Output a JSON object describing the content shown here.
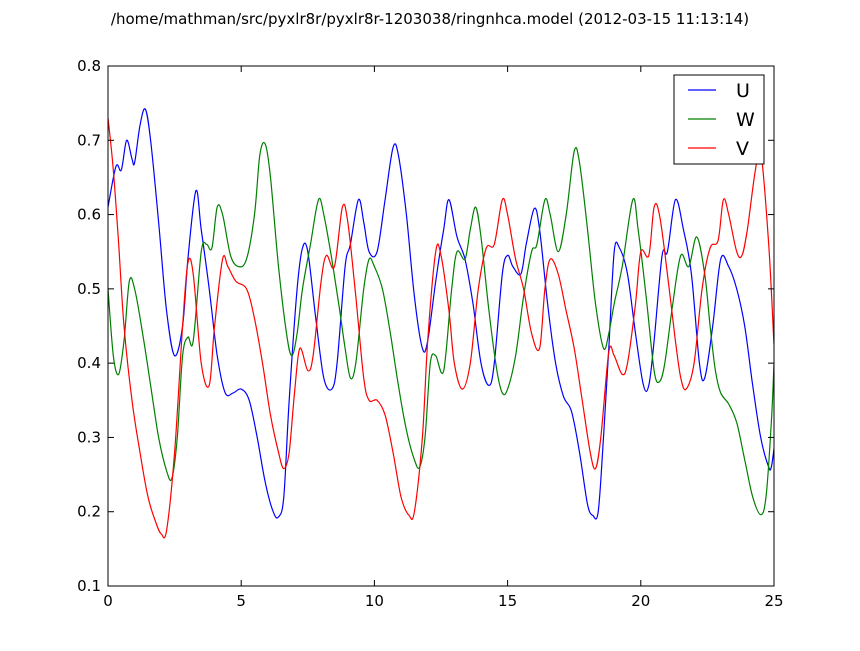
{
  "chart_data": {
    "type": "line",
    "title": "/home/mathman/src/pyxlr8r/pyxlr8r-1203038/ringnhca.model (2012-03-15 11:13:14)",
    "xlabel": "",
    "ylabel": "",
    "xlim": [
      0,
      25
    ],
    "ylim": [
      0.1,
      0.8
    ],
    "xticks": [
      0,
      5,
      10,
      15,
      20,
      25
    ],
    "yticks": [
      0.1,
      0.2,
      0.3,
      0.4,
      0.5,
      0.6,
      0.7,
      0.8
    ],
    "xtick_labels": [
      "0",
      "5",
      "10",
      "15",
      "20",
      "25"
    ],
    "ytick_labels": [
      "0.1",
      "0.2",
      "0.3",
      "0.4",
      "0.5",
      "0.6",
      "0.7",
      "0.8"
    ],
    "grid": false,
    "legend_position": "top-right",
    "series": [
      {
        "name": "U",
        "color": "#0000ff",
        "points": [
          [
            0,
            0.61
          ],
          [
            0.3,
            0.665
          ],
          [
            0.5,
            0.66
          ],
          [
            0.7,
            0.7
          ],
          [
            0.9,
            0.675
          ],
          [
            1.0,
            0.67
          ],
          [
            1.2,
            0.72
          ],
          [
            1.4,
            0.742
          ],
          [
            1.6,
            0.7
          ],
          [
            1.9,
            0.59
          ],
          [
            2.2,
            0.47
          ],
          [
            2.5,
            0.41
          ],
          [
            2.8,
            0.45
          ],
          [
            3.0,
            0.54
          ],
          [
            3.3,
            0.632
          ],
          [
            3.5,
            0.58
          ],
          [
            3.8,
            0.5
          ],
          [
            4.1,
            0.41
          ],
          [
            4.4,
            0.36
          ],
          [
            4.7,
            0.36
          ],
          [
            5.0,
            0.365
          ],
          [
            5.3,
            0.35
          ],
          [
            5.6,
            0.3
          ],
          [
            5.9,
            0.24
          ],
          [
            6.2,
            0.2
          ],
          [
            6.4,
            0.193
          ],
          [
            6.6,
            0.22
          ],
          [
            6.8,
            0.35
          ],
          [
            7.1,
            0.5
          ],
          [
            7.3,
            0.555
          ],
          [
            7.5,
            0.55
          ],
          [
            7.8,
            0.46
          ],
          [
            8.1,
            0.38
          ],
          [
            8.4,
            0.365
          ],
          [
            8.6,
            0.4
          ],
          [
            8.9,
            0.53
          ],
          [
            9.1,
            0.56
          ],
          [
            9.4,
            0.62
          ],
          [
            9.6,
            0.59
          ],
          [
            9.8,
            0.55
          ],
          [
            10.1,
            0.55
          ],
          [
            10.4,
            0.62
          ],
          [
            10.7,
            0.69
          ],
          [
            10.9,
            0.68
          ],
          [
            11.2,
            0.6
          ],
          [
            11.5,
            0.49
          ],
          [
            11.8,
            0.42
          ],
          [
            12.0,
            0.43
          ],
          [
            12.3,
            0.51
          ],
          [
            12.6,
            0.58
          ],
          [
            12.8,
            0.62
          ],
          [
            13.1,
            0.57
          ],
          [
            13.4,
            0.54
          ],
          [
            13.7,
            0.48
          ],
          [
            14.0,
            0.4
          ],
          [
            14.3,
            0.37
          ],
          [
            14.5,
            0.4
          ],
          [
            14.8,
            0.52
          ],
          [
            15.0,
            0.545
          ],
          [
            15.2,
            0.53
          ],
          [
            15.5,
            0.52
          ],
          [
            15.7,
            0.56
          ],
          [
            16.0,
            0.608
          ],
          [
            16.2,
            0.58
          ],
          [
            16.5,
            0.48
          ],
          [
            16.8,
            0.4
          ],
          [
            17.1,
            0.355
          ],
          [
            17.4,
            0.335
          ],
          [
            17.7,
            0.28
          ],
          [
            18.0,
            0.21
          ],
          [
            18.2,
            0.195
          ],
          [
            18.4,
            0.2
          ],
          [
            18.6,
            0.3
          ],
          [
            18.8,
            0.42
          ],
          [
            19.0,
            0.55
          ],
          [
            19.2,
            0.555
          ],
          [
            19.5,
            0.52
          ],
          [
            19.8,
            0.44
          ],
          [
            20.1,
            0.37
          ],
          [
            20.3,
            0.37
          ],
          [
            20.5,
            0.43
          ],
          [
            20.8,
            0.545
          ],
          [
            21.0,
            0.55
          ],
          [
            21.3,
            0.62
          ],
          [
            21.6,
            0.58
          ],
          [
            21.9,
            0.52
          ],
          [
            22.2,
            0.4
          ],
          [
            22.4,
            0.38
          ],
          [
            22.7,
            0.45
          ],
          [
            23.0,
            0.54
          ],
          [
            23.3,
            0.53
          ],
          [
            23.6,
            0.5
          ],
          [
            23.9,
            0.45
          ],
          [
            24.2,
            0.37
          ],
          [
            24.5,
            0.3
          ],
          [
            24.8,
            0.26
          ],
          [
            24.9,
            0.26
          ],
          [
            25.0,
            0.285
          ]
        ]
      },
      {
        "name": "W",
        "color": "#008000",
        "points": [
          [
            0,
            0.5
          ],
          [
            0.2,
            0.41
          ],
          [
            0.4,
            0.385
          ],
          [
            0.6,
            0.43
          ],
          [
            0.8,
            0.51
          ],
          [
            1.0,
            0.5
          ],
          [
            1.3,
            0.44
          ],
          [
            1.6,
            0.37
          ],
          [
            1.9,
            0.3
          ],
          [
            2.2,
            0.255
          ],
          [
            2.4,
            0.245
          ],
          [
            2.6,
            0.3
          ],
          [
            2.8,
            0.41
          ],
          [
            3.0,
            0.435
          ],
          [
            3.2,
            0.43
          ],
          [
            3.5,
            0.55
          ],
          [
            3.7,
            0.56
          ],
          [
            3.9,
            0.555
          ],
          [
            4.1,
            0.61
          ],
          [
            4.3,
            0.6
          ],
          [
            4.6,
            0.545
          ],
          [
            4.9,
            0.53
          ],
          [
            5.2,
            0.54
          ],
          [
            5.5,
            0.6
          ],
          [
            5.7,
            0.68
          ],
          [
            5.9,
            0.695
          ],
          [
            6.1,
            0.65
          ],
          [
            6.4,
            0.53
          ],
          [
            6.7,
            0.44
          ],
          [
            6.9,
            0.41
          ],
          [
            7.1,
            0.44
          ],
          [
            7.3,
            0.5
          ],
          [
            7.6,
            0.56
          ],
          [
            7.9,
            0.62
          ],
          [
            8.1,
            0.6
          ],
          [
            8.4,
            0.54
          ],
          [
            8.7,
            0.47
          ],
          [
            8.9,
            0.42
          ],
          [
            9.1,
            0.38
          ],
          [
            9.3,
            0.4
          ],
          [
            9.6,
            0.5
          ],
          [
            9.8,
            0.54
          ],
          [
            10.0,
            0.53
          ],
          [
            10.3,
            0.5
          ],
          [
            10.6,
            0.44
          ],
          [
            10.9,
            0.37
          ],
          [
            11.2,
            0.31
          ],
          [
            11.5,
            0.27
          ],
          [
            11.7,
            0.26
          ],
          [
            11.9,
            0.3
          ],
          [
            12.1,
            0.4
          ],
          [
            12.3,
            0.41
          ],
          [
            12.6,
            0.39
          ],
          [
            12.9,
            0.5
          ],
          [
            13.1,
            0.55
          ],
          [
            13.4,
            0.54
          ],
          [
            13.6,
            0.58
          ],
          [
            13.8,
            0.61
          ],
          [
            14.0,
            0.57
          ],
          [
            14.3,
            0.47
          ],
          [
            14.6,
            0.39
          ],
          [
            14.8,
            0.36
          ],
          [
            15.0,
            0.365
          ],
          [
            15.3,
            0.41
          ],
          [
            15.6,
            0.49
          ],
          [
            15.9,
            0.55
          ],
          [
            16.1,
            0.56
          ],
          [
            16.4,
            0.62
          ],
          [
            16.6,
            0.6
          ],
          [
            16.9,
            0.55
          ],
          [
            17.2,
            0.6
          ],
          [
            17.5,
            0.685
          ],
          [
            17.7,
            0.67
          ],
          [
            18.0,
            0.58
          ],
          [
            18.3,
            0.48
          ],
          [
            18.6,
            0.42
          ],
          [
            18.8,
            0.44
          ],
          [
            19.0,
            0.48
          ],
          [
            19.3,
            0.53
          ],
          [
            19.7,
            0.62
          ],
          [
            19.9,
            0.58
          ],
          [
            20.2,
            0.49
          ],
          [
            20.5,
            0.39
          ],
          [
            20.7,
            0.375
          ],
          [
            20.9,
            0.4
          ],
          [
            21.2,
            0.48
          ],
          [
            21.5,
            0.545
          ],
          [
            21.8,
            0.53
          ],
          [
            22.1,
            0.57
          ],
          [
            22.4,
            0.52
          ],
          [
            22.6,
            0.45
          ],
          [
            22.8,
            0.39
          ],
          [
            23.0,
            0.36
          ],
          [
            23.3,
            0.345
          ],
          [
            23.6,
            0.32
          ],
          [
            23.9,
            0.27
          ],
          [
            24.2,
            0.22
          ],
          [
            24.5,
            0.196
          ],
          [
            24.7,
            0.22
          ],
          [
            24.9,
            0.32
          ],
          [
            25.0,
            0.4
          ]
        ]
      },
      {
        "name": "V",
        "color": "#ff0000",
        "points": [
          [
            0,
            0.73
          ],
          [
            0.2,
            0.66
          ],
          [
            0.4,
            0.56
          ],
          [
            0.6,
            0.45
          ],
          [
            0.9,
            0.35
          ],
          [
            1.2,
            0.28
          ],
          [
            1.5,
            0.22
          ],
          [
            1.8,
            0.185
          ],
          [
            2.0,
            0.17
          ],
          [
            2.2,
            0.175
          ],
          [
            2.5,
            0.28
          ],
          [
            2.8,
            0.45
          ],
          [
            3.0,
            0.535
          ],
          [
            3.2,
            0.52
          ],
          [
            3.5,
            0.4
          ],
          [
            3.8,
            0.37
          ],
          [
            4.0,
            0.45
          ],
          [
            4.3,
            0.54
          ],
          [
            4.5,
            0.53
          ],
          [
            4.8,
            0.51
          ],
          [
            5.2,
            0.5
          ],
          [
            5.5,
            0.46
          ],
          [
            5.8,
            0.4
          ],
          [
            6.1,
            0.33
          ],
          [
            6.4,
            0.28
          ],
          [
            6.6,
            0.258
          ],
          [
            6.8,
            0.28
          ],
          [
            7.0,
            0.36
          ],
          [
            7.2,
            0.42
          ],
          [
            7.5,
            0.39
          ],
          [
            7.7,
            0.41
          ],
          [
            8.0,
            0.51
          ],
          [
            8.2,
            0.545
          ],
          [
            8.5,
            0.53
          ],
          [
            8.8,
            0.61
          ],
          [
            9.0,
            0.59
          ],
          [
            9.3,
            0.49
          ],
          [
            9.6,
            0.38
          ],
          [
            9.8,
            0.35
          ],
          [
            10.1,
            0.35
          ],
          [
            10.4,
            0.33
          ],
          [
            10.7,
            0.28
          ],
          [
            11.0,
            0.22
          ],
          [
            11.3,
            0.195
          ],
          [
            11.5,
            0.2
          ],
          [
            11.8,
            0.3
          ],
          [
            12.0,
            0.43
          ],
          [
            12.3,
            0.55
          ],
          [
            12.5,
            0.545
          ],
          [
            12.8,
            0.47
          ],
          [
            13.0,
            0.4
          ],
          [
            13.3,
            0.365
          ],
          [
            13.6,
            0.4
          ],
          [
            13.9,
            0.5
          ],
          [
            14.2,
            0.555
          ],
          [
            14.5,
            0.56
          ],
          [
            14.8,
            0.62
          ],
          [
            15.0,
            0.6
          ],
          [
            15.3,
            0.54
          ],
          [
            15.6,
            0.5
          ],
          [
            15.9,
            0.44
          ],
          [
            16.2,
            0.42
          ],
          [
            16.4,
            0.5
          ],
          [
            16.6,
            0.54
          ],
          [
            16.9,
            0.52
          ],
          [
            17.2,
            0.47
          ],
          [
            17.5,
            0.42
          ],
          [
            17.8,
            0.35
          ],
          [
            18.1,
            0.28
          ],
          [
            18.3,
            0.258
          ],
          [
            18.5,
            0.3
          ],
          [
            18.8,
            0.415
          ],
          [
            19.0,
            0.41
          ],
          [
            19.3,
            0.385
          ],
          [
            19.5,
            0.4
          ],
          [
            19.8,
            0.48
          ],
          [
            20.0,
            0.55
          ],
          [
            20.3,
            0.545
          ],
          [
            20.5,
            0.61
          ],
          [
            20.7,
            0.6
          ],
          [
            21.0,
            0.52
          ],
          [
            21.3,
            0.43
          ],
          [
            21.5,
            0.38
          ],
          [
            21.7,
            0.365
          ],
          [
            22.0,
            0.4
          ],
          [
            22.3,
            0.5
          ],
          [
            22.6,
            0.555
          ],
          [
            22.9,
            0.565
          ],
          [
            23.1,
            0.62
          ],
          [
            23.3,
            0.6
          ],
          [
            23.6,
            0.55
          ],
          [
            23.8,
            0.545
          ],
          [
            24.0,
            0.58
          ],
          [
            24.3,
            0.66
          ],
          [
            24.5,
            0.685
          ],
          [
            24.8,
            0.56
          ],
          [
            25.0,
            0.425
          ]
        ]
      }
    ]
  }
}
